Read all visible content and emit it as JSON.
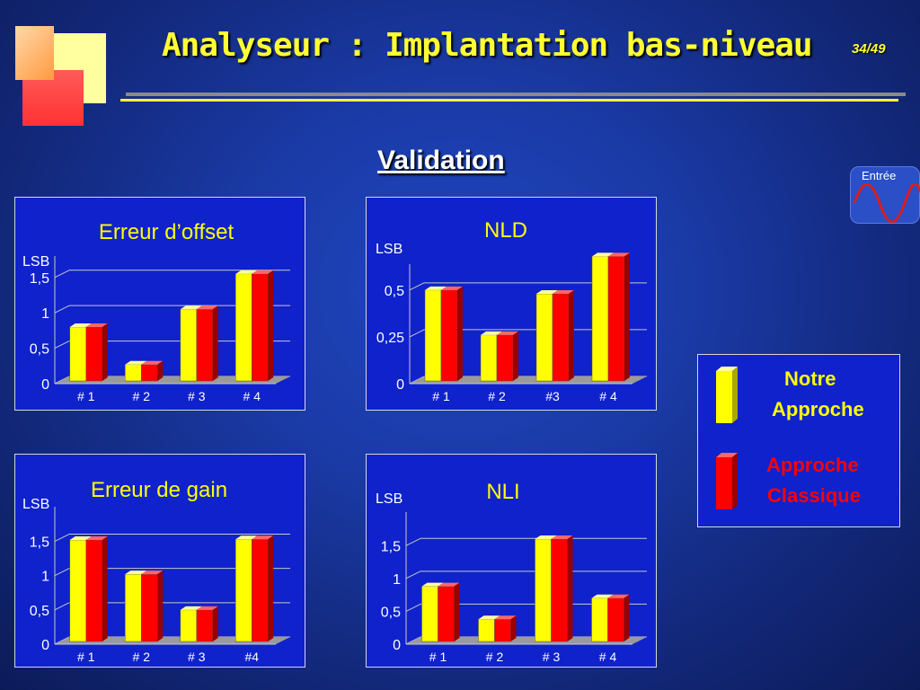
{
  "slide": {
    "title": "Analyseur : Implantation bas-niveau",
    "page": "34/49",
    "subtitle": "Validation",
    "signal_label": "Entrée"
  },
  "legend": {
    "yellow_line1": "Notre",
    "yellow_line2": "Approche",
    "red_line1": "Approche",
    "red_line2": "Classique"
  },
  "colors": {
    "yellow": "#ffff00",
    "red": "#ff0000",
    "panel": "#0f22cc"
  },
  "chart_data": [
    {
      "type": "bar",
      "title": "Erreur d’offset",
      "ylabel": "LSB",
      "categories": [
        "# 1",
        "# 2",
        "# 3",
        "# 4"
      ],
      "yticks": [
        "0",
        "0,5",
        "1",
        "1,5"
      ],
      "ylim": [
        0,
        1.7
      ],
      "series": [
        {
          "name": "Notre Approche",
          "values": [
            0.8,
            0.27,
            1.05,
            1.55
          ]
        },
        {
          "name": "Approche Classique",
          "values": [
            0.8,
            0.27,
            1.05,
            1.55
          ]
        }
      ]
    },
    {
      "type": "bar",
      "title": "NLD",
      "ylabel": "LSB",
      "categories": [
        "# 1",
        "# 2",
        "#3",
        "# 4"
      ],
      "yticks": [
        "0",
        "0,25",
        "0,5"
      ],
      "ylim": [
        0,
        0.6
      ],
      "series": [
        {
          "name": "Notre Approche",
          "values": [
            0.5,
            0.26,
            0.48,
            0.68
          ]
        },
        {
          "name": "Approche Classique",
          "values": [
            0.5,
            0.26,
            0.48,
            0.68
          ]
        }
      ]
    },
    {
      "type": "bar",
      "title": "Erreur de gain",
      "ylabel": "LSB",
      "categories": [
        "# 1",
        "# 2",
        "# 3",
        "#4"
      ],
      "yticks": [
        "0",
        "0,5",
        "1",
        "1,5"
      ],
      "ylim": [
        0,
        1.9
      ],
      "series": [
        {
          "name": "Notre Approche",
          "values": [
            1.52,
            1.02,
            0.5,
            1.53
          ]
        },
        {
          "name": "Approche Classique",
          "values": [
            1.52,
            1.02,
            0.5,
            1.53
          ]
        }
      ]
    },
    {
      "type": "bar",
      "title": "NLI",
      "ylabel": "LSB",
      "categories": [
        "# 1",
        "# 2",
        "# 3",
        "# 4"
      ],
      "yticks": [
        "0",
        "0,5",
        "1",
        "1,5"
      ],
      "ylim": [
        0,
        1.9
      ],
      "series": [
        {
          "name": "Notre Approche",
          "values": [
            0.88,
            0.38,
            1.6,
            0.7
          ]
        },
        {
          "name": "Approche Classique",
          "values": [
            0.88,
            0.38,
            1.6,
            0.7
          ]
        }
      ]
    }
  ]
}
